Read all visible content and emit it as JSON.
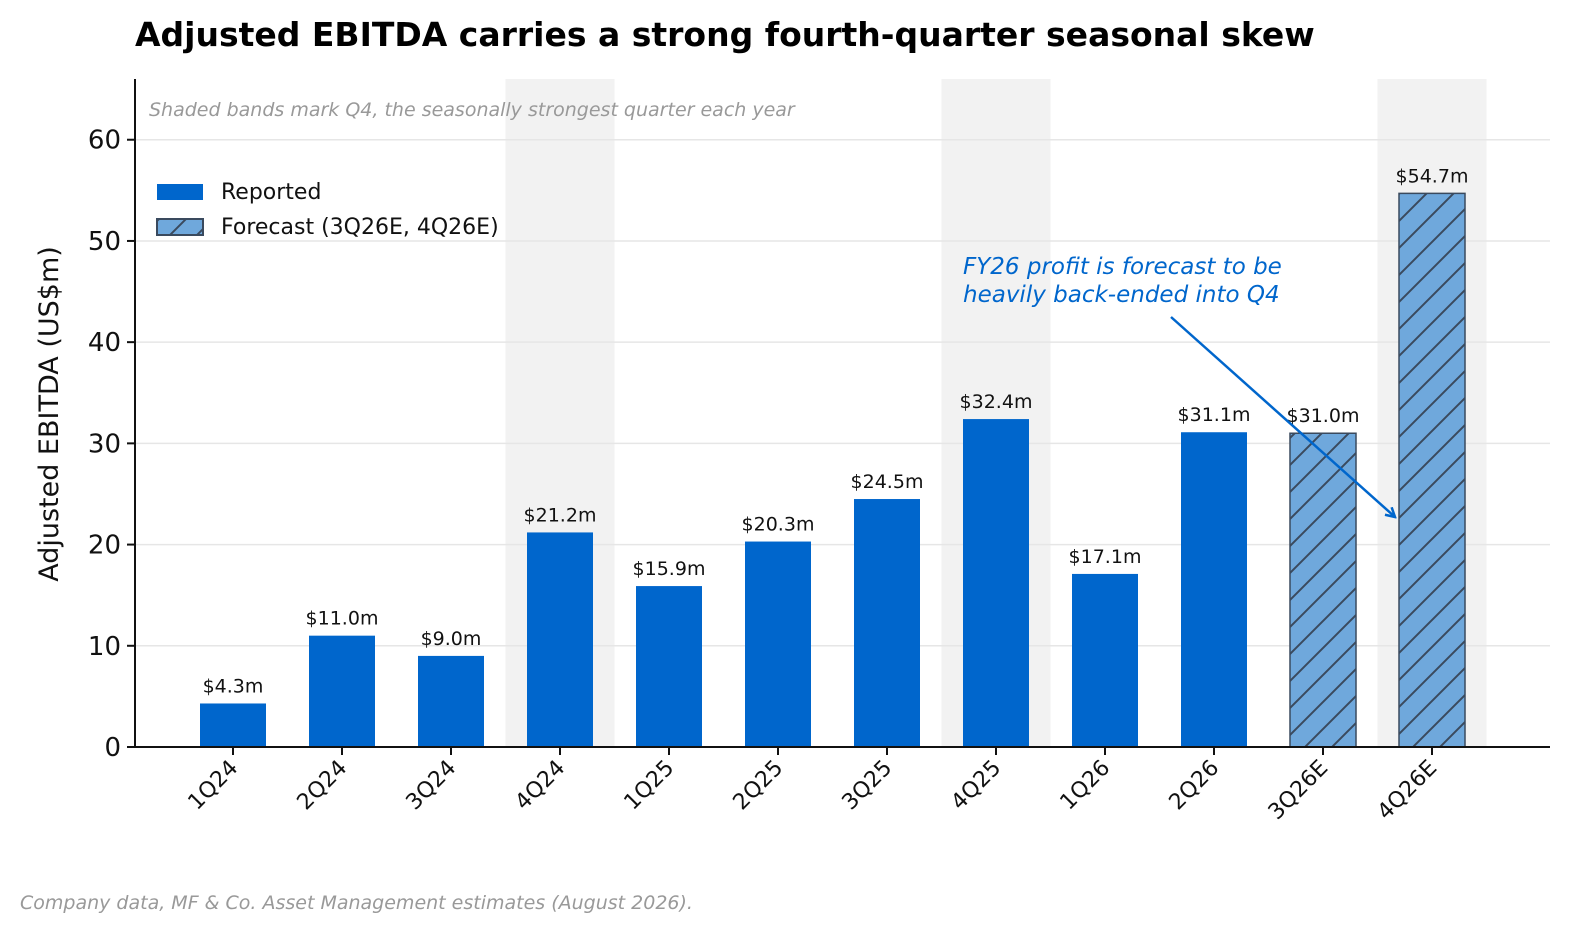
{
  "colors": {
    "reported": "#0066cc",
    "forecast": "#6fa8dc",
    "band": "#f2f2f2",
    "annotation": "#0066cc",
    "muted": "#999999",
    "grid": "#e6e6e6"
  },
  "chart_data": {
    "type": "bar",
    "title": "Adjusted EBITDA carries a strong fourth-quarter seasonal skew",
    "subtitle": "Shaded bands mark Q4, the seasonally strongest quarter each year",
    "xlabel": "",
    "ylabel": "Adjusted EBITDA (US$m)",
    "ylim": [
      0,
      66
    ],
    "yticks": [
      0,
      10,
      20,
      30,
      40,
      50,
      60
    ],
    "grid": "horizontal",
    "legend_position": "upper-left",
    "categories": [
      "1Q24",
      "2Q24",
      "3Q24",
      "4Q24",
      "1Q25",
      "2Q25",
      "3Q25",
      "4Q25",
      "1Q26",
      "2Q26",
      "3Q26E",
      "4Q26E"
    ],
    "values": [
      4.3,
      11.0,
      9.0,
      21.2,
      15.9,
      20.3,
      24.5,
      32.4,
      17.1,
      31.1,
      31.0,
      54.7
    ],
    "data_labels": [
      "$4.3m",
      "$11.0m",
      "$9.0m",
      "$21.2m",
      "$15.9m",
      "$20.3m",
      "$24.5m",
      "$32.4m",
      "$17.1m",
      "$31.1m",
      "$31.0m",
      "$54.7m"
    ],
    "forecast": [
      false,
      false,
      false,
      false,
      false,
      false,
      false,
      false,
      false,
      false,
      true,
      true
    ],
    "shaded_q4": [
      "4Q24",
      "4Q25",
      "4Q26E"
    ],
    "legend": [
      {
        "label": "Reported",
        "style": "solid"
      },
      {
        "label": "Forecast (3Q26E, 4Q26E)",
        "style": "hatched"
      }
    ],
    "annotation": {
      "lines": [
        "FY26 profit is forecast to be",
        "heavily back-ended into Q4"
      ],
      "points_to": "4Q26E"
    },
    "source": "Company data, MF & Co. Asset Management estimates (August 2026)."
  }
}
